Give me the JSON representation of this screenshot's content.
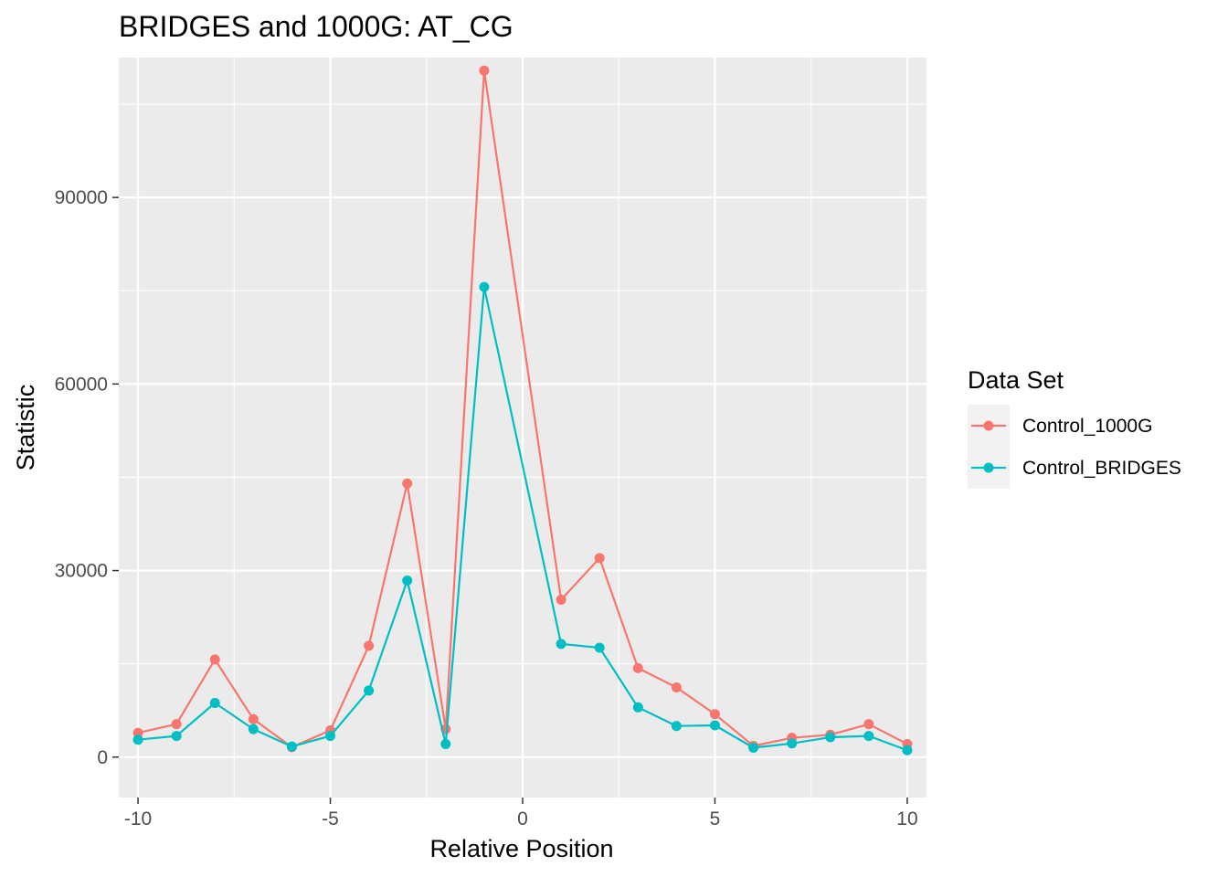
{
  "chart_data": {
    "type": "line",
    "title": "BRIDGES and 1000G: AT_CG",
    "xlabel": "Relative Position",
    "ylabel": "Statistic",
    "xlim": [
      -10.5,
      10.5
    ],
    "ylim": [
      -6500,
      112500
    ],
    "x_ticks": [
      -10,
      -5,
      0,
      5,
      10
    ],
    "x_tick_labels": [
      "-10",
      "-5",
      "0",
      "5",
      "10"
    ],
    "y_ticks": [
      0,
      30000,
      60000,
      90000
    ],
    "y_tick_labels": [
      "0",
      "30000",
      "60000",
      "90000"
    ],
    "grid": true,
    "legend": {
      "title": "Data Set",
      "position": "right"
    },
    "x": [
      -10,
      -9,
      -8,
      -7,
      -6,
      -5,
      -4,
      -3,
      -2,
      -1,
      1,
      2,
      3,
      4,
      5,
      6,
      7,
      8,
      9,
      10
    ],
    "series": [
      {
        "name": "Control_1000G",
        "color": "#F8766D",
        "values": [
          3900,
          5300,
          15700,
          6100,
          1600,
          4300,
          17900,
          44000,
          4500,
          110400,
          25300,
          32000,
          14300,
          11200,
          6900,
          1800,
          3100,
          3600,
          5300,
          2100
        ]
      },
      {
        "name": "Control_BRIDGES",
        "color": "#00BFC4",
        "values": [
          2800,
          3400,
          8700,
          4500,
          1700,
          3400,
          10700,
          28400,
          2100,
          75600,
          18200,
          17600,
          8000,
          5000,
          5100,
          1500,
          2200,
          3200,
          3400,
          1100
        ]
      }
    ]
  }
}
